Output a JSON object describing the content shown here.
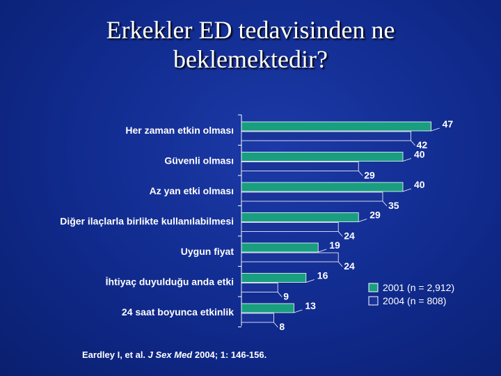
{
  "slide": {
    "title_line1": "Erkekler ED tedavisinden ne",
    "title_line2": "beklemektedir?"
  },
  "citation": {
    "authors": "Eardley I, et al. ",
    "journal": "J Sex Med",
    "details": " 2004; 1: 146-156."
  },
  "colors": {
    "series_2001": "#1a9e80",
    "series_2004": "#1a3399",
    "bar_outline": "#ffffff",
    "text": "#ffffff"
  },
  "chart_data": {
    "type": "bar",
    "orientation": "horizontal",
    "categories": [
      "Her zaman etkin olması",
      "Güvenli olması",
      "Az yan etki olması",
      "Diğer ilaçlarla birlikte kullanılabilmesi",
      "Uygun fiyat",
      "İhtiyaç duyulduğu anda etki",
      "24 saat boyunca etkinlik"
    ],
    "series": [
      {
        "name": "2001  (n = 2,912)",
        "values": [
          47,
          40,
          40,
          29,
          19,
          16,
          13
        ]
      },
      {
        "name": "2004  (n = 808)",
        "values": [
          42,
          29,
          35,
          24,
          24,
          9,
          8
        ]
      }
    ],
    "xlim": [
      0,
      50
    ],
    "grid": false,
    "legend_position": "right"
  }
}
